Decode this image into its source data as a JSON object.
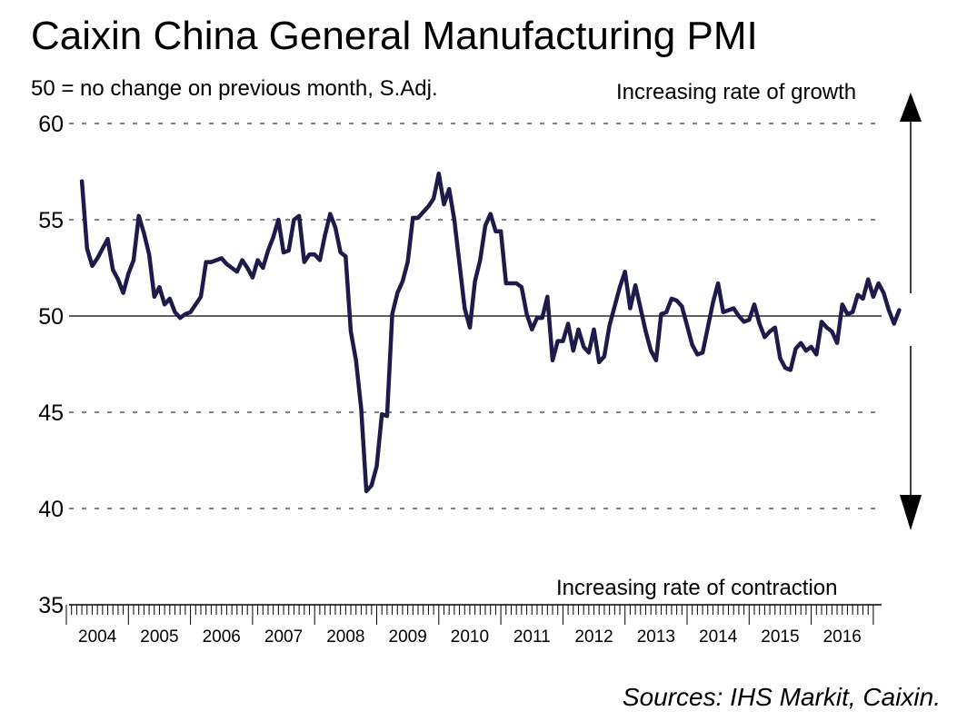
{
  "chart_data": {
    "type": "line",
    "title": "Caixin China General Manufacturing PMI",
    "subtitle": "50 = no change on previous month, S.Adj.",
    "annotation_top": "Increasing rate of growth",
    "annotation_bottom": "Increasing rate of contraction",
    "source": "Sources: IHS Markit, Caixin.",
    "ylim": [
      35,
      60
    ],
    "yticks": [
      35,
      40,
      45,
      50,
      55,
      60
    ],
    "ytick_labels": [
      "35",
      "40",
      "45",
      "50",
      "55",
      "60"
    ],
    "years": [
      "2004",
      "2005",
      "2006",
      "2007",
      "2008",
      "2009",
      "2010",
      "2011",
      "2012",
      "2013",
      "2014",
      "2015",
      "2016"
    ],
    "x_start": "2004-04",
    "series": [
      {
        "name": "Caixin China General Manufacturing PMI",
        "color": "#1e1a4a",
        "values": [
          57.0,
          53.5,
          52.6,
          53.0,
          53.5,
          54.0,
          52.4,
          51.9,
          51.2,
          52.2,
          52.9,
          55.2,
          54.3,
          53.2,
          51.0,
          51.5,
          50.6,
          50.9,
          50.2,
          49.9,
          50.1,
          50.2,
          50.6,
          51.0,
          52.8,
          52.8,
          52.9,
          53.0,
          52.7,
          52.5,
          52.3,
          52.9,
          52.5,
          52.0,
          52.9,
          52.5,
          53.4,
          54.1,
          55.0,
          53.3,
          53.4,
          55.0,
          55.2,
          52.8,
          53.2,
          53.2,
          52.9,
          54.2,
          55.3,
          54.6,
          53.3,
          53.1,
          49.2,
          47.7,
          45.2,
          40.9,
          41.2,
          42.2,
          44.9,
          44.8,
          50.1,
          51.2,
          51.8,
          52.8,
          55.1,
          55.1,
          55.4,
          55.7,
          56.1,
          57.4,
          55.8,
          56.6,
          55.0,
          52.7,
          50.4,
          49.4,
          51.8,
          52.9,
          54.7,
          55.3,
          54.4,
          54.4,
          51.7,
          51.7,
          51.7,
          51.5,
          50.1,
          49.3,
          49.9,
          49.9,
          51.0,
          47.7,
          48.7,
          48.7,
          49.6,
          48.2,
          49.3,
          48.4,
          48.1,
          49.3,
          47.6,
          47.9,
          49.5,
          50.5,
          51.5,
          52.3,
          50.4,
          51.6,
          50.4,
          49.2,
          48.2,
          47.7,
          50.1,
          50.2,
          50.9,
          50.8,
          50.5,
          49.5,
          48.5,
          48.0,
          48.1,
          49.4,
          50.7,
          51.7,
          50.2,
          50.3,
          50.4,
          50.0,
          49.7,
          49.8,
          50.6,
          49.6,
          48.9,
          49.2,
          49.4,
          47.8,
          47.3,
          47.2,
          48.3,
          48.6,
          48.2,
          48.4,
          48.0,
          49.7,
          49.4,
          49.2,
          48.6,
          50.6,
          50.1,
          50.2,
          51.1,
          50.9,
          51.9,
          51.0,
          51.7,
          51.2,
          50.3,
          49.6,
          50.3
        ]
      }
    ],
    "reference_line": 50
  }
}
